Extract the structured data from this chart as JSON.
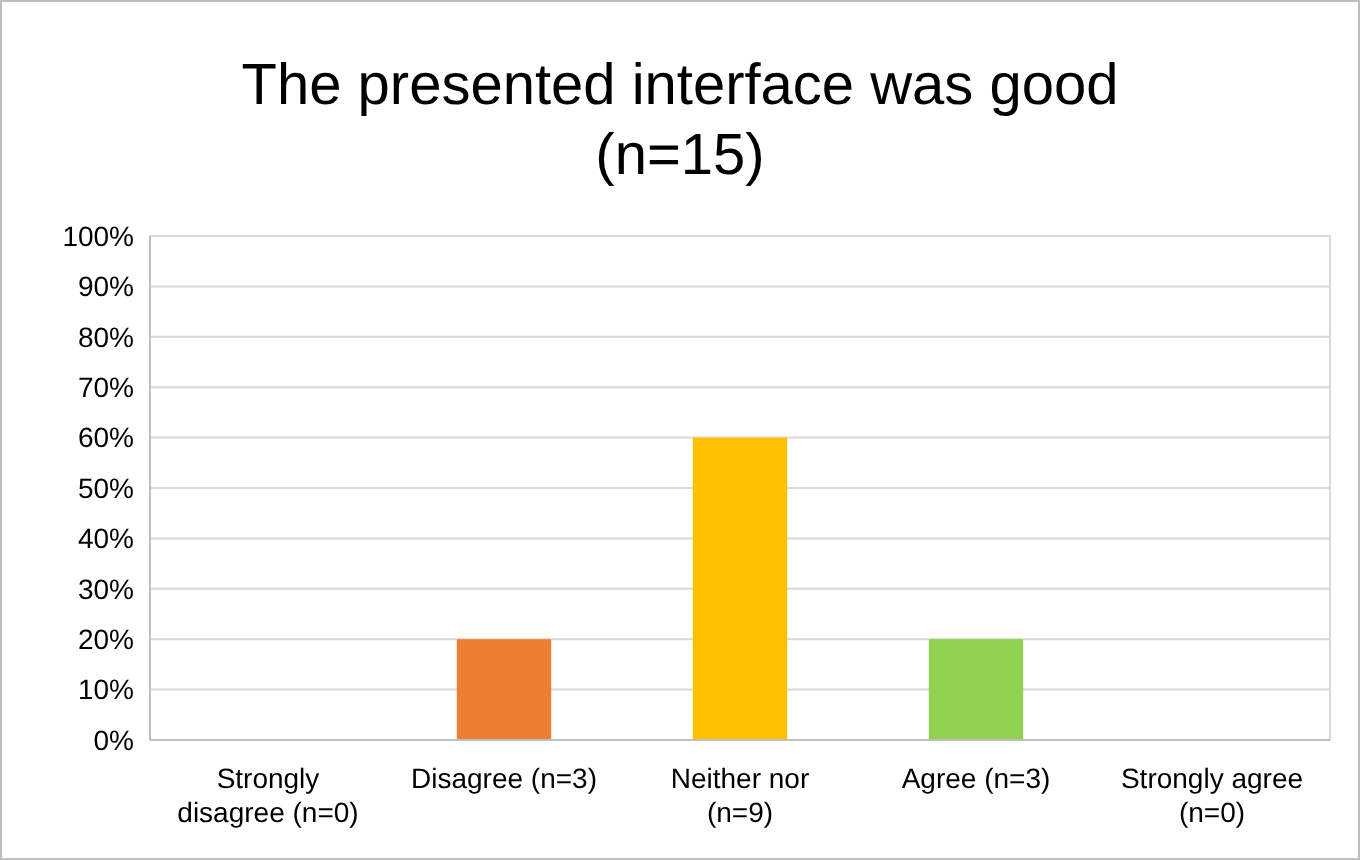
{
  "chart_data": {
    "type": "bar",
    "title": "The presented interface was good\n(n=15)",
    "categories": [
      "Strongly disagree (n=0)",
      "Disagree (n=3)",
      "Neither nor (n=9)",
      "Agree (n=3)",
      "Strongly agree (n=0)"
    ],
    "values": [
      0,
      20,
      60,
      20,
      0
    ],
    "colors": [
      "#4472c4",
      "#ed7d31",
      "#ffc000",
      "#92d050",
      "#5b9bd5"
    ],
    "ylim": [
      0,
      100
    ],
    "yticks": [
      {
        "value": 0,
        "label": "0%"
      },
      {
        "value": 10,
        "label": "10%"
      },
      {
        "value": 20,
        "label": "20%"
      },
      {
        "value": 30,
        "label": "30%"
      },
      {
        "value": 40,
        "label": "40%"
      },
      {
        "value": 50,
        "label": "50%"
      },
      {
        "value": 60,
        "label": "60%"
      },
      {
        "value": 70,
        "label": "70%"
      },
      {
        "value": 80,
        "label": "80%"
      },
      {
        "value": 90,
        "label": "90%"
      },
      {
        "value": 100,
        "label": "100%"
      }
    ],
    "grid": "y"
  }
}
